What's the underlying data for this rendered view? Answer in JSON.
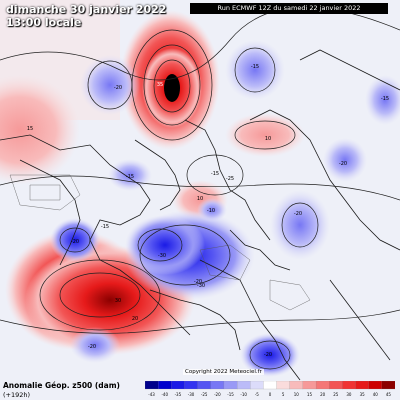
{
  "title": {
    "date": "dimanche 30 janvier 2022",
    "time": "13:00 locale"
  },
  "run_info": "Run ECMWF 12Z du samedi 22 janvier 2022",
  "legend": {
    "title": "Anomalie Géop. z500 (dam)",
    "subtitle": "(+192h)",
    "ticks": [
      "-43",
      "-40",
      "-35",
      "-30",
      "-25",
      "-20",
      "-15",
      "-10",
      "-5",
      "0",
      "5",
      "10",
      "15",
      "20",
      "25",
      "30",
      "35",
      "40",
      "45"
    ],
    "colors": [
      "#00008b",
      "#0000cd",
      "#1a1ae6",
      "#3333f0",
      "#5555f2",
      "#7777f4",
      "#9999f6",
      "#bbbbf8",
      "#dcdcfa",
      "#ffffff",
      "#fadcdc",
      "#f8bbbb",
      "#f69999",
      "#f47777",
      "#f25555",
      "#f03333",
      "#e61a1a",
      "#cd0000",
      "#8b0000"
    ]
  },
  "copyright": "Copyright 2022 Meteociel.fr",
  "anomaly_labels": [
    "-20",
    "-15",
    "-20",
    "-15",
    "-20",
    "-10",
    "-30",
    "-20",
    "-30",
    "-20",
    "-20",
    "-20",
    "-15",
    "-25",
    "30",
    "20",
    "35",
    "10",
    "10",
    "15",
    "-15",
    "-15"
  ],
  "colors": {
    "ocean": "#e6ecf5",
    "coastline": "#1a1a1a",
    "contour": "#202020"
  }
}
